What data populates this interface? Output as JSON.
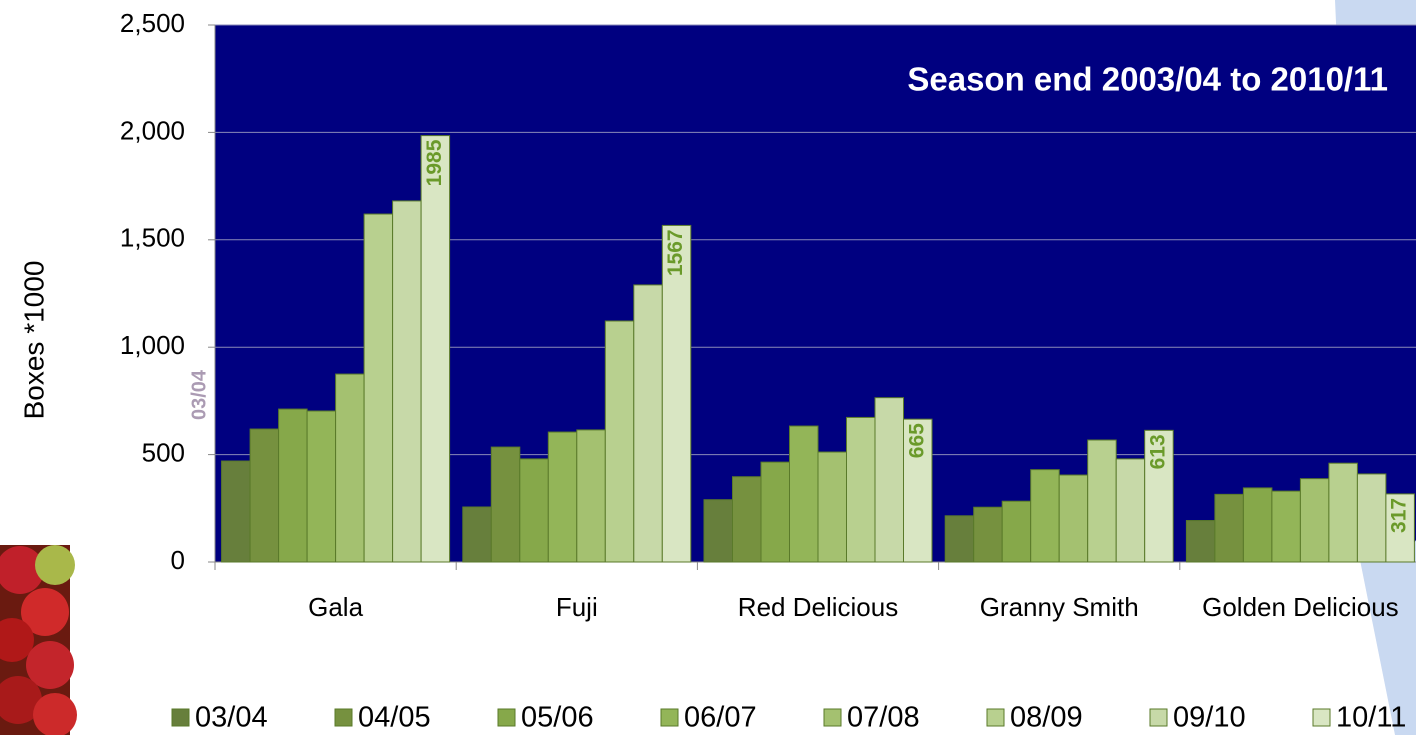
{
  "chart_data": {
    "type": "bar",
    "title": "Season end 2003/04 to 2010/11",
    "y_label": "Boxes *1000",
    "annotations": [
      {
        "text": "03/04"
      }
    ],
    "categories": [
      "Gala",
      "Fuji",
      "Red Delicious",
      "Granny Smith",
      "Golden Delicious"
    ],
    "series": [
      {
        "name": "03/04",
        "color": "#677f3c",
        "values": [
          470,
          256,
          290,
          215,
          193
        ]
      },
      {
        "name": "04/05",
        "color": "#76913f",
        "values": [
          619,
          535,
          397,
          255,
          315
        ]
      },
      {
        "name": "05/06",
        "color": "#86a84a",
        "values": [
          712,
          480,
          465,
          283,
          345
        ]
      },
      {
        "name": "06/07",
        "color": "#93b558",
        "values": [
          703,
          605,
          633,
          430,
          330
        ]
      },
      {
        "name": "07/08",
        "color": "#a4c170",
        "values": [
          875,
          615,
          512,
          405,
          388
        ]
      },
      {
        "name": "08/09",
        "color": "#b8d08f",
        "values": [
          1620,
          1122,
          673,
          568,
          460
        ]
      },
      {
        "name": "09/10",
        "color": "#c7d9a8",
        "values": [
          1681,
          1290,
          765,
          480,
          410
        ]
      },
      {
        "name": "10/11",
        "color": "#d9e6c3",
        "values": [
          1985,
          1567,
          665,
          613,
          317
        ],
        "show_value_labels": true
      }
    ],
    "ylim": [
      0,
      2500
    ],
    "yticks": [
      0,
      {
        "value": 500,
        "label": "500"
      },
      {
        "value": 1000,
        "label": "1,000"
      },
      {
        "value": 1500,
        "label": "1,500"
      },
      {
        "value": 2000,
        "label": "2,000"
      },
      {
        "value": 2500,
        "label": "2,500"
      }
    ],
    "grid": true,
    "plot_background": "#000080",
    "value_label_color": "#6a9a2a",
    "legend": "bottom"
  }
}
